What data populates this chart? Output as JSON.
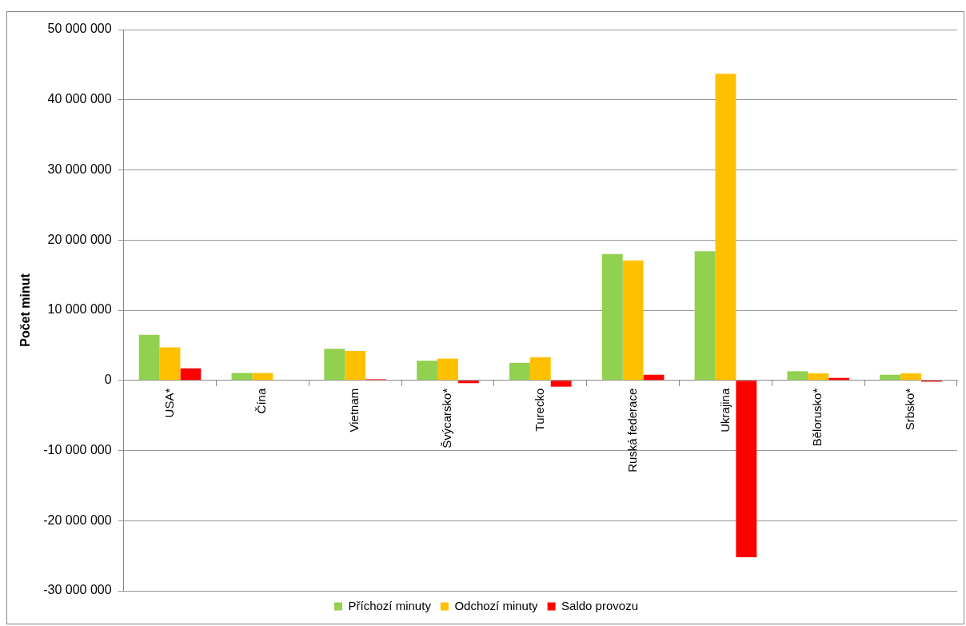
{
  "chart_data": {
    "type": "bar",
    "ylabel": "Počet minut",
    "categories": [
      "USA*",
      "Čína",
      "Vietnam",
      "Švýcarsko*",
      "Turecko",
      "Ruská federace",
      "Ukrajina",
      "Bělorusko*",
      "Srbsko*"
    ],
    "series": [
      {
        "name": "Příchozí minuty",
        "color": "#92d050",
        "values": [
          6500000,
          1050000,
          4500000,
          2800000,
          2500000,
          18000000,
          18400000,
          1300000,
          800000
        ]
      },
      {
        "name": "Odchozí minuty",
        "color": "#ffc000",
        "values": [
          4700000,
          1050000,
          4200000,
          3100000,
          3300000,
          17100000,
          43700000,
          1000000,
          1000000
        ]
      },
      {
        "name": "Saldo provozu",
        "color": "#ff0000",
        "values": [
          1700000,
          0,
          150000,
          -400000,
          -900000,
          800000,
          -25200000,
          350000,
          -200000
        ]
      }
    ],
    "ylim": [
      -30000000,
      50000000
    ],
    "yticks": [
      {
        "value": -30000000,
        "label": "-30 000 000"
      },
      {
        "value": -20000000,
        "label": "-20 000 000"
      },
      {
        "value": -10000000,
        "label": "-10 000 000"
      },
      {
        "value": 0,
        "label": "0"
      },
      {
        "value": 10000000,
        "label": "10 000 000"
      },
      {
        "value": 20000000,
        "label": "20 000 000"
      },
      {
        "value": 30000000,
        "label": "30 000 000"
      },
      {
        "value": 40000000,
        "label": "40 000 000"
      },
      {
        "value": 50000000,
        "label": "50 000 000"
      }
    ],
    "grid": "y",
    "legend": "bottom"
  }
}
